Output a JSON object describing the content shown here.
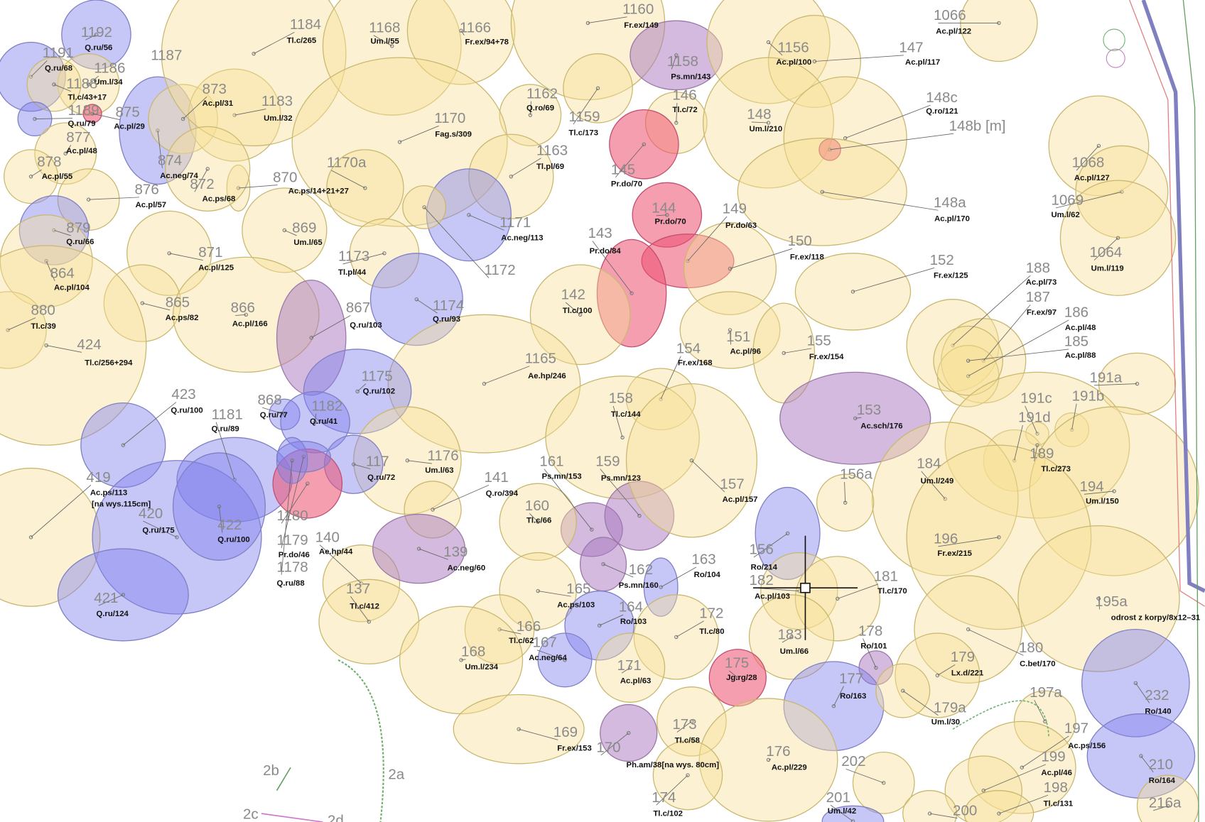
{
  "trees": [
    {
      "number": "1192",
      "species": "Q.ru/56"
    },
    {
      "number": "1191",
      "species": "Q.ru/68"
    },
    {
      "number": "1186",
      "species": "Um.l/34"
    },
    {
      "number": "1187"
    },
    {
      "number": "1188",
      "species": "Tl.c/43+17"
    },
    {
      "number": "1189",
      "species": "Q.ru/79"
    },
    {
      "number": "875",
      "species": "Ac.pl/29"
    },
    {
      "number": "877",
      "species": "Ac.pl/48"
    },
    {
      "number": "878",
      "species": "Ac.pl/55"
    },
    {
      "number": "874",
      "species": "Ac.neg/74"
    },
    {
      "number": "873",
      "species": "Ac.pl/31"
    },
    {
      "number": "1183",
      "species": "Um.l/32"
    },
    {
      "number": "1184",
      "species": "Tl.c/265"
    },
    {
      "number": "1168",
      "species": "Um.l/55"
    },
    {
      "number": "1166",
      "species": "Fr.ex/94+78"
    },
    {
      "number": "1160",
      "species": "Fr.ex/149"
    },
    {
      "number": "1158",
      "species": "Ps.mn/143"
    },
    {
      "number": "1156",
      "species": "Ac.pl/100"
    },
    {
      "number": "147",
      "species": "Ac.pl/117"
    },
    {
      "number": "1066",
      "species": "Ac.pl/122"
    },
    {
      "number": "1162",
      "species": "Q.ro/69"
    },
    {
      "number": "1159",
      "species": "Tl.c/173"
    },
    {
      "number": "146",
      "species": "Tl.c/72"
    },
    {
      "number": "148",
      "species": "Um.l/210"
    },
    {
      "number": "148c",
      "species": "Q.ro/121"
    },
    {
      "number": "148b [m]"
    },
    {
      "number": "1170",
      "species": "Fag.s/309"
    },
    {
      "number": "1163",
      "species": "Tl.pl/69"
    },
    {
      "number": "1170a"
    },
    {
      "number": "145",
      "species": "Pr.do/70"
    },
    {
      "number": "870",
      "species": "Ac.ps/14+21+27"
    },
    {
      "number": "872",
      "species": "Ac.ps/68"
    },
    {
      "number": "876",
      "species": "Ac.pl/57"
    },
    {
      "number": "1068",
      "species": "Ac.pl/127"
    },
    {
      "number": "1069",
      "species": "Um.l/62"
    },
    {
      "number": "144",
      "species": "Pr.do/70"
    },
    {
      "number": "149",
      "species": "Pr.do/63"
    },
    {
      "number": "148a",
      "species": "Ac.pl/170"
    },
    {
      "number": "1171",
      "species": "Ac.neg/113"
    },
    {
      "number": "869",
      "species": "Um.l/65"
    },
    {
      "number": "879",
      "species": "Q.ru/66"
    },
    {
      "number": "864",
      "species": "Ac.pl/104"
    },
    {
      "number": "871",
      "species": "Ac.pl/125"
    },
    {
      "number": "1172"
    },
    {
      "number": "1173",
      "species": "Tl.pl/44"
    },
    {
      "number": "143",
      "species": "Pr.do/84"
    },
    {
      "number": "150",
      "species": "Fr.ex/118"
    },
    {
      "number": "152",
      "species": "Fr.ex/125"
    },
    {
      "number": "1064",
      "species": "Um.l/119"
    },
    {
      "number": "188",
      "species": "Ac.pl/73"
    },
    {
      "number": "187",
      "species": "Fr.ex/97"
    },
    {
      "number": "186",
      "species": "Ac.pl/48"
    },
    {
      "number": "185",
      "species": "Ac.pl/88"
    },
    {
      "number": "880",
      "species": "Tl.c/39"
    },
    {
      "number": "865",
      "species": "Ac.ps/82"
    },
    {
      "number": "866",
      "species": "Ac.pl/166"
    },
    {
      "number": "867",
      "species": "Q.ru/103"
    },
    {
      "number": "1174",
      "species": "Q.ru/93"
    },
    {
      "number": "142",
      "species": "Tl.c/100"
    },
    {
      "number": "151",
      "species": "Ac.pl/96"
    },
    {
      "number": "155",
      "species": "Fr.ex/154"
    },
    {
      "number": "154",
      "species": "Fr.ex/168"
    },
    {
      "number": "424",
      "species": "Tl.c/256+294"
    },
    {
      "number": "1165",
      "species": "Ae.hp/246"
    },
    {
      "number": "1175",
      "species": "Q.ru/102"
    },
    {
      "number": "153",
      "species": "Ac.sch/176"
    },
    {
      "number": "191a"
    },
    {
      "number": "191c"
    },
    {
      "number": "191b"
    },
    {
      "number": "191d"
    },
    {
      "number": "158",
      "species": "Tl.c/144"
    },
    {
      "number": "423",
      "species": "Q.ru/100"
    },
    {
      "number": "868",
      "species": "Q.ru/77"
    },
    {
      "number": "1182",
      "species": "Q.ru/41"
    },
    {
      "number": "1181",
      "species": "Q.ru/89"
    },
    {
      "number": "189",
      "species": "Tl.c/273"
    },
    {
      "number": "184",
      "species": "Um.l/249"
    },
    {
      "number": "194",
      "species": "Um.l/150"
    },
    {
      "number": "1176",
      "species": "Um.l/63"
    },
    {
      "number": "117",
      "species": "Q.ru/72"
    },
    {
      "number": "161",
      "species": "Ps.mn/153"
    },
    {
      "number": "159",
      "species": "Ps.mn/123"
    },
    {
      "number": "141",
      "species": "Q.ro/394"
    },
    {
      "number": "157",
      "species": "Ac.pl/157"
    },
    {
      "number": "156a"
    },
    {
      "number": "419",
      "species": "Ac.ps/113",
      "note": "[na wys.115cm]"
    },
    {
      "number": "420",
      "species": "Q.ru/175"
    },
    {
      "number": "422",
      "species": "Q.ru/100"
    },
    {
      "number": "160",
      "species": "Tl.c/66"
    },
    {
      "number": "1180"
    },
    {
      "number": "1179",
      "species": "Pr.do/46"
    },
    {
      "number": "1178",
      "species": "Q.ru/88"
    },
    {
      "number": "140",
      "species": "Ae.hp/44"
    },
    {
      "number": "139",
      "species": "Ac.neg/60"
    },
    {
      "number": "162",
      "species": "Ps.mn/160"
    },
    {
      "number": "163",
      "species": "Ro/104"
    },
    {
      "number": "156",
      "species": "Ro/214"
    },
    {
      "number": "182",
      "species": "Ac.pl/103"
    },
    {
      "number": "181",
      "species": "Tl.c/170"
    },
    {
      "number": "421",
      "species": "Q.ru/124"
    },
    {
      "number": "137",
      "species": "Tl.c/412"
    },
    {
      "number": "165",
      "species": "Ac.ps/103"
    },
    {
      "number": "164",
      "species": "Ro/103"
    },
    {
      "number": "172",
      "species": "Tl.c/80"
    },
    {
      "number": "196",
      "species": "Fr.ex/215"
    },
    {
      "number": "195a",
      "species": "odrost z korpy/8x12–31"
    },
    {
      "number": "166",
      "species": "Tl.c/62"
    },
    {
      "number": "167",
      "species": "Ac.neg/64"
    },
    {
      "number": "183",
      "species": "Um.l/66"
    },
    {
      "number": "178",
      "species": "Ro/101"
    },
    {
      "number": "180",
      "species": "C.bet/170"
    },
    {
      "number": "168",
      "species": "Um.l/234"
    },
    {
      "number": "175",
      "species": "Jg.rg/28"
    },
    {
      "number": "179",
      "species": "Lx.d/221"
    },
    {
      "number": "171",
      "species": "Ac.pl/63"
    },
    {
      "number": "177",
      "species": "Ro/163"
    },
    {
      "number": "232",
      "species": "Ro/140"
    },
    {
      "number": "197a"
    },
    {
      "number": "179a",
      "species": "Um.l/30"
    },
    {
      "number": "169",
      "species": "Fr.ex/153"
    },
    {
      "number": "173",
      "species": "Tl.c/58"
    },
    {
      "number": "170",
      "species": "Ph.am/38[na wys. 80cm]"
    },
    {
      "number": "176",
      "species": "Ac.pl/229"
    },
    {
      "number": "197",
      "species": "Ac.ps/156"
    },
    {
      "number": "202"
    },
    {
      "number": "199",
      "species": "Ac.pl/46"
    },
    {
      "number": "210",
      "species": "Ro/164"
    },
    {
      "number": "198",
      "species": "Tl.c/131"
    },
    {
      "number": "174",
      "species": "Tl.c/102"
    },
    {
      "number": "201",
      "species": "Um.l/42"
    },
    {
      "number": "200"
    },
    {
      "number": "216a"
    }
  ],
  "markers": [
    "2b",
    "2a",
    "2c",
    "2d"
  ]
}
